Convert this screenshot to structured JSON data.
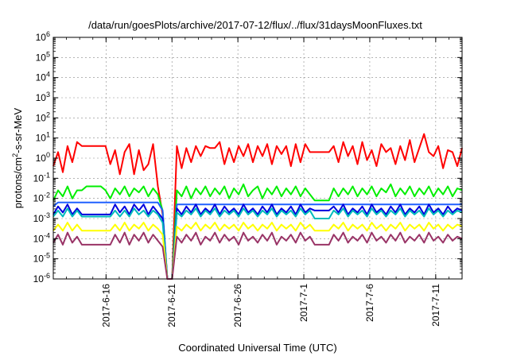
{
  "chart_data": {
    "type": "line",
    "title": "/data/run/goesPlots/archive/2017-07-12/flux/../flux/31daysMoonFluxes.txt",
    "xlabel": "Coordinated Universal Time (UTC)",
    "ylabel": "protons/cm²-s-sr-MeV",
    "ylabel_parts": {
      "pre": "protons/cm",
      "sup": "2",
      "post": "-s-sr-MeV"
    },
    "yscale": "log",
    "ylim_exp": [
      -6,
      6
    ],
    "y_tick_base": "10",
    "y_tick_exponents": [
      "-6",
      "-5",
      "-4",
      "-3",
      "-2",
      "-1",
      "0",
      "1",
      "2",
      "3",
      "4",
      "5",
      "6"
    ],
    "x_range_days": [
      0,
      31
    ],
    "x_ticks": [
      {
        "label": "2017-6-16",
        "day": 4
      },
      {
        "label": "2017-6-21",
        "day": 9
      },
      {
        "label": "2017-6-26",
        "day": 14
      },
      {
        "label": "2017-7-1",
        "day": 19
      },
      {
        "label": "2017-7-6",
        "day": 24
      },
      {
        "label": "2017-7-11",
        "day": 29
      }
    ],
    "grid": true,
    "legend": "none",
    "series": [
      {
        "color": "#ff0000",
        "log_values": [
          -0.4,
          0.3,
          -0.7,
          0.6,
          -0.2,
          0.8,
          0.6,
          0.6,
          0.6,
          0.6,
          0.6,
          0.6,
          -0.3,
          0.4,
          -0.8,
          0.3,
          0.7,
          -0.8,
          0.4,
          -0.6,
          -0.3,
          0.7,
          -1.4,
          -2.8,
          -6,
          -6,
          0.6,
          -0.5,
          0.5,
          -0.2,
          0.6,
          0.1,
          0.6,
          0.5,
          0.5,
          0.8,
          -0.3,
          0.5,
          -0.2,
          0.6,
          0.1,
          0.7,
          -0.2,
          0.6,
          0.1,
          0.7,
          -0.3,
          0.6,
          0.2,
          0.6,
          -0.4,
          0.7,
          -0.2,
          0.7,
          0.3,
          0.3,
          0.3,
          0.3,
          0.3,
          0.6,
          -0.2,
          0.8,
          0.1,
          0.6,
          -0.3,
          0.8,
          -0.1,
          0.4,
          -0.4,
          0.7,
          0.3,
          0.5,
          -0.3,
          0.6,
          -0.1,
          0.9,
          -0.2,
          0.5,
          1.2,
          0.3,
          0.1,
          0.6,
          -0.5,
          0.4,
          0.3,
          -0.4,
          0.5
        ]
      },
      {
        "color": "#00ee00",
        "log_values": [
          -2.1,
          -1.6,
          -1.9,
          -1.4,
          -2.0,
          -1.6,
          -1.6,
          -1.4,
          -1.4,
          -1.4,
          -1.4,
          -1.6,
          -2.0,
          -1.5,
          -1.8,
          -1.4,
          -1.9,
          -1.5,
          -1.7,
          -1.4,
          -1.9,
          -1.5,
          -1.8,
          -2.6,
          -6,
          -6,
          -1.6,
          -1.9,
          -1.4,
          -2.0,
          -1.5,
          -1.8,
          -1.4,
          -1.9,
          -1.5,
          -1.8,
          -1.4,
          -2.0,
          -1.5,
          -1.8,
          -1.3,
          -1.9,
          -1.6,
          -1.4,
          -2.0,
          -1.5,
          -1.8,
          -1.4,
          -1.9,
          -1.5,
          -1.8,
          -1.4,
          -1.9,
          -1.5,
          -1.8,
          -2.1,
          -2.1,
          -2.1,
          -2.1,
          -1.5,
          -1.9,
          -1.5,
          -1.8,
          -1.4,
          -1.9,
          -1.5,
          -1.8,
          -1.4,
          -1.9,
          -1.5,
          -1.7,
          -1.3,
          -1.9,
          -1.5,
          -1.8,
          -1.4,
          -1.9,
          -1.5,
          -1.8,
          -1.4,
          -1.9,
          -1.5,
          -1.8,
          -1.4,
          -1.9,
          -1.5,
          -1.6
        ]
      },
      {
        "color": "#2060ff",
        "log_values": [
          -2.4,
          -2.2,
          -2.2,
          -2.2,
          -2.2,
          -2.2,
          -2.2,
          -2.2,
          -2.2,
          -2.2,
          -2.2,
          -2.2,
          -2.2,
          -2.2,
          -2.2,
          -2.2,
          -2.2,
          -2.2,
          -2.2,
          -2.2,
          -2.2,
          -2.2,
          -2.2,
          -2.6,
          -6,
          -6,
          -2.3,
          -2.3,
          -2.3,
          -2.3,
          -2.3,
          -2.3,
          -2.3,
          -2.3,
          -2.3,
          -2.3,
          -2.3,
          -2.3,
          -2.3,
          -2.3,
          -2.3,
          -2.3,
          -2.3,
          -2.3,
          -2.3,
          -2.3,
          -2.3,
          -2.3,
          -2.3,
          -2.3,
          -2.3,
          -2.3,
          -2.3,
          -2.3,
          -2.3,
          -2.3,
          -2.3,
          -2.3,
          -2.3,
          -2.3,
          -2.3,
          -2.3,
          -2.3,
          -2.3,
          -2.3,
          -2.3,
          -2.3,
          -2.3,
          -2.3,
          -2.3,
          -2.3,
          -2.3,
          -2.3,
          -2.3,
          -2.3,
          -2.3,
          -2.3,
          -2.3,
          -2.3,
          -2.3,
          -2.3,
          -2.3,
          -2.3,
          -2.3,
          -2.3,
          -2.3,
          -2.3
        ]
      },
      {
        "color": "#0000dd",
        "log_values": [
          -2.8,
          -2.4,
          -2.7,
          -2.3,
          -2.8,
          -2.5,
          -2.8,
          -2.8,
          -2.8,
          -2.8,
          -2.8,
          -2.8,
          -2.8,
          -2.3,
          -2.7,
          -2.4,
          -2.8,
          -2.3,
          -2.6,
          -2.3,
          -2.8,
          -2.4,
          -2.7,
          -3.0,
          -6,
          -6,
          -2.5,
          -2.8,
          -2.4,
          -2.7,
          -2.3,
          -2.8,
          -2.5,
          -2.7,
          -2.3,
          -2.8,
          -2.4,
          -2.7,
          -2.5,
          -2.8,
          -2.3,
          -2.7,
          -2.5,
          -2.8,
          -2.4,
          -2.7,
          -2.3,
          -2.8,
          -2.5,
          -2.7,
          -2.4,
          -2.8,
          -2.3,
          -2.7,
          -2.5,
          -2.6,
          -2.6,
          -2.6,
          -2.6,
          -2.4,
          -2.7,
          -2.3,
          -2.8,
          -2.5,
          -2.7,
          -2.4,
          -2.8,
          -2.3,
          -2.7,
          -2.5,
          -2.8,
          -2.4,
          -2.7,
          -2.3,
          -2.8,
          -2.5,
          -2.7,
          -2.4,
          -2.8,
          -2.3,
          -2.7,
          -2.5,
          -2.8,
          -2.4,
          -2.7,
          -2.5,
          -2.6
        ]
      },
      {
        "color": "#00bbbb",
        "log_values": [
          -2.9,
          -2.6,
          -2.9,
          -2.5,
          -2.9,
          -2.6,
          -2.9,
          -2.9,
          -2.9,
          -2.9,
          -2.9,
          -2.9,
          -2.9,
          -2.6,
          -2.9,
          -2.6,
          -2.9,
          -2.5,
          -2.8,
          -2.6,
          -2.9,
          -2.6,
          -2.8,
          -3.2,
          -6,
          -6,
          -2.7,
          -2.9,
          -2.6,
          -2.8,
          -2.5,
          -2.9,
          -2.6,
          -2.8,
          -2.5,
          -2.9,
          -2.6,
          -2.8,
          -2.6,
          -2.9,
          -2.5,
          -2.8,
          -2.6,
          -2.9,
          -2.6,
          -2.8,
          -2.5,
          -2.9,
          -2.6,
          -2.8,
          -2.6,
          -2.9,
          -2.5,
          -2.8,
          -2.6,
          -3.0,
          -3.0,
          -3.0,
          -3.0,
          -2.6,
          -2.8,
          -2.5,
          -2.9,
          -2.6,
          -2.8,
          -2.6,
          -2.9,
          -2.5,
          -2.8,
          -2.6,
          -2.9,
          -2.6,
          -2.8,
          -2.5,
          -2.9,
          -2.6,
          -2.8,
          -2.6,
          -2.9,
          -2.5,
          -2.8,
          -2.6,
          -2.9,
          -2.6,
          -2.8,
          -2.6,
          -2.7
        ]
      },
      {
        "color": "#ffff00",
        "log_values": [
          -3.6,
          -3.3,
          -3.6,
          -3.2,
          -3.6,
          -3.3,
          -3.6,
          -3.6,
          -3.6,
          -3.6,
          -3.6,
          -3.6,
          -3.6,
          -3.3,
          -3.6,
          -3.2,
          -3.6,
          -3.3,
          -3.5,
          -3.2,
          -3.6,
          -3.3,
          -3.5,
          -3.8,
          -6,
          -6,
          -3.4,
          -3.6,
          -3.3,
          -3.5,
          -3.2,
          -3.6,
          -3.3,
          -3.5,
          -3.2,
          -3.6,
          -3.3,
          -3.5,
          -3.3,
          -3.6,
          -3.2,
          -3.5,
          -3.3,
          -3.6,
          -3.3,
          -3.5,
          -3.2,
          -3.6,
          -3.3,
          -3.5,
          -3.3,
          -3.6,
          -3.2,
          -3.5,
          -3.3,
          -3.6,
          -3.6,
          -3.6,
          -3.6,
          -3.3,
          -3.5,
          -3.2,
          -3.6,
          -3.3,
          -3.5,
          -3.3,
          -3.6,
          -3.2,
          -3.5,
          -3.3,
          -3.6,
          -3.3,
          -3.5,
          -3.2,
          -3.6,
          -3.3,
          -3.5,
          -3.3,
          -3.6,
          -3.2,
          -3.5,
          -3.3,
          -3.6,
          -3.3,
          -3.5,
          -3.3,
          -3.4
        ]
      },
      {
        "color": "#993366",
        "log_values": [
          -4.2,
          -3.8,
          -4.3,
          -3.7,
          -4.2,
          -3.9,
          -4.3,
          -4.3,
          -4.3,
          -4.3,
          -4.3,
          -4.3,
          -4.3,
          -3.8,
          -4.2,
          -3.7,
          -4.3,
          -3.8,
          -4.1,
          -3.7,
          -4.2,
          -3.8,
          -4.1,
          -4.4,
          -6,
          -6,
          -3.9,
          -4.2,
          -3.8,
          -4.1,
          -3.7,
          -4.3,
          -3.9,
          -4.1,
          -3.7,
          -4.2,
          -3.8,
          -4.1,
          -3.9,
          -4.3,
          -3.7,
          -4.1,
          -3.9,
          -4.2,
          -3.8,
          -4.1,
          -3.7,
          -4.3,
          -3.9,
          -4.1,
          -3.8,
          -4.2,
          -3.7,
          -4.1,
          -3.9,
          -4.3,
          -4.3,
          -4.3,
          -4.3,
          -3.8,
          -4.1,
          -3.7,
          -4.2,
          -3.9,
          -4.1,
          -3.8,
          -4.2,
          -3.7,
          -4.1,
          -3.9,
          -4.2,
          -3.8,
          -4.1,
          -3.7,
          -4.2,
          -3.9,
          -4.1,
          -3.8,
          -4.2,
          -3.7,
          -4.1,
          -3.9,
          -4.2,
          -3.8,
          -4.1,
          -3.9,
          -4.0
        ]
      }
    ]
  }
}
